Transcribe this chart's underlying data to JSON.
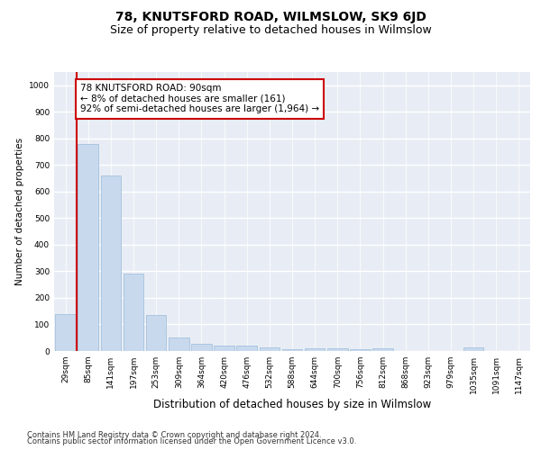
{
  "title": "78, KNUTSFORD ROAD, WILMSLOW, SK9 6JD",
  "subtitle": "Size of property relative to detached houses in Wilmslow",
  "xlabel": "Distribution of detached houses by size in Wilmslow",
  "ylabel": "Number of detached properties",
  "bar_color": "#c8d9ee",
  "bar_edge_color": "#9bbcd8",
  "background_color": "#e8edf5",
  "grid_color": "#ffffff",
  "annotation_box_color": "#cc0000",
  "annotation_text": "78 KNUTSFORD ROAD: 90sqm\n← 8% of detached houses are smaller (161)\n92% of semi-detached houses are larger (1,964) →",
  "vline_color": "#cc0000",
  "vline_x": 0.5,
  "categories": [
    "29sqm",
    "85sqm",
    "141sqm",
    "197sqm",
    "253sqm",
    "309sqm",
    "364sqm",
    "420sqm",
    "476sqm",
    "532sqm",
    "588sqm",
    "644sqm",
    "700sqm",
    "756sqm",
    "812sqm",
    "868sqm",
    "923sqm",
    "979sqm",
    "1035sqm",
    "1091sqm",
    "1147sqm"
  ],
  "values": [
    140,
    780,
    660,
    290,
    135,
    52,
    28,
    20,
    20,
    14,
    8,
    9,
    11,
    8,
    10,
    0,
    0,
    0,
    12,
    0,
    0
  ],
  "ylim": [
    0,
    1050
  ],
  "yticks": [
    0,
    100,
    200,
    300,
    400,
    500,
    600,
    700,
    800,
    900,
    1000
  ],
  "footer_line1": "Contains HM Land Registry data © Crown copyright and database right 2024.",
  "footer_line2": "Contains public sector information licensed under the Open Government Licence v3.0.",
  "title_fontsize": 10,
  "subtitle_fontsize": 9,
  "xlabel_fontsize": 8.5,
  "ylabel_fontsize": 7.5,
  "tick_fontsize": 6.5,
  "footer_fontsize": 6,
  "annotation_fontsize": 7.5
}
